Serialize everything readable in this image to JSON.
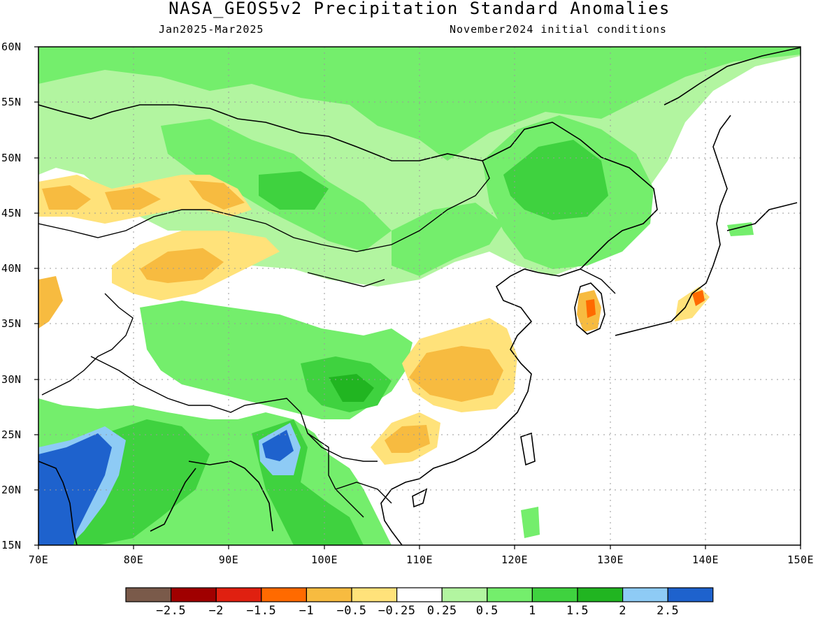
{
  "title": "NASA_GEOS5v2 Precipitation Standard Anomalies",
  "subtitle_left": "Jan2025-Mar2025",
  "subtitle_right": "November2024 initial conditions",
  "lat_ticks": [
    "60N",
    "55N",
    "50N",
    "45N",
    "40N",
    "35N",
    "30N",
    "25N",
    "20N",
    "15N"
  ],
  "lon_ticks": [
    "70E",
    "80E",
    "90E",
    "100E",
    "110E",
    "120E",
    "130E",
    "140E",
    "150E"
  ],
  "map": {
    "lon_range": [
      70,
      150
    ],
    "lat_range": [
      15,
      60
    ],
    "projection": "equirectangular"
  },
  "colorbar": {
    "colors": [
      "#7a5a4a",
      "#a00000",
      "#e02010",
      "#ff6a00",
      "#f7bb40",
      "#ffe27a",
      "#ffffff",
      "#b2f5a0",
      "#74ee6c",
      "#3fd23f",
      "#21b521",
      "#8ecbf5",
      "#1e62cd"
    ],
    "labels": [
      "-2.5",
      "-2",
      "-1.5",
      "-1",
      "-0.5",
      "-0.25",
      "0.25",
      "0.5",
      "1",
      "1.5",
      "2",
      "2.5"
    ]
  },
  "regions": [
    {
      "name": "north-green-belt",
      "level": "0.5",
      "color": "#b2f5a0"
    },
    {
      "name": "northeast-china-wet",
      "level": "1.5",
      "color": "#3fd23f"
    },
    {
      "name": "central-asia-dry",
      "level": "-0.5",
      "color": "#f7bb40"
    },
    {
      "name": "east-china-dry",
      "level": "-0.5",
      "color": "#f7bb40"
    },
    {
      "name": "south-china-dry",
      "level": "-0.5",
      "color": "#f7bb40"
    },
    {
      "name": "india-wet",
      "level": "2.5",
      "color": "#1e62cd"
    },
    {
      "name": "myanmar-wet",
      "level": "2.5",
      "color": "#1e62cd"
    },
    {
      "name": "korea-dry",
      "level": "-1",
      "color": "#ff6a00"
    },
    {
      "name": "japan-dry",
      "level": "-1",
      "color": "#ff6a00"
    }
  ]
}
